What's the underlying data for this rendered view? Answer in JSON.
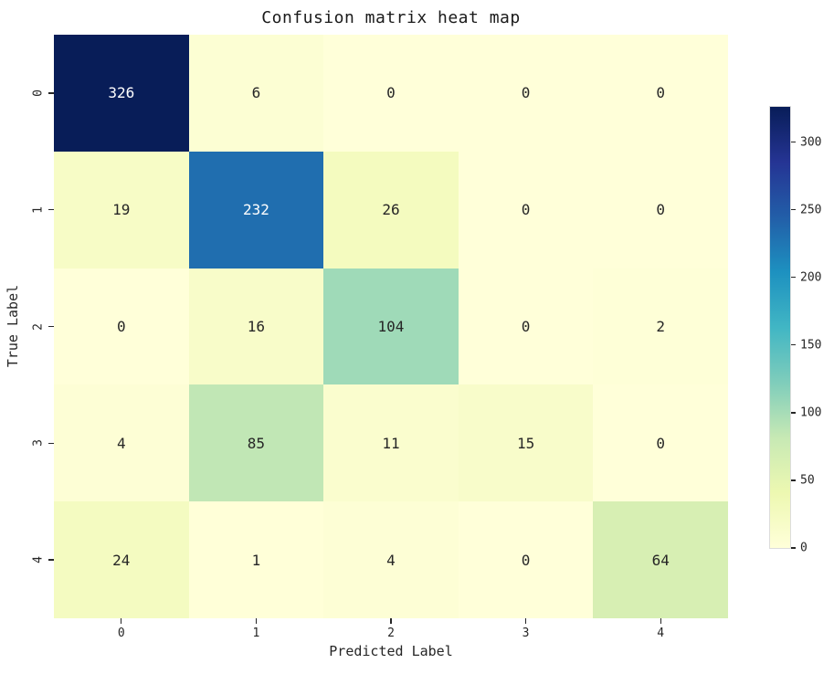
{
  "chart_data": {
    "type": "heatmap",
    "title": "Confusion matrix heat map",
    "xlabel": "Predicted Label",
    "ylabel": "True Label",
    "x_ticklabels": [
      "0",
      "1",
      "2",
      "3",
      "4"
    ],
    "y_ticklabels": [
      "0",
      "1",
      "2",
      "3",
      "4"
    ],
    "matrix": [
      [
        326,
        6,
        0,
        0,
        0
      ],
      [
        19,
        232,
        26,
        0,
        0
      ],
      [
        0,
        16,
        104,
        0,
        2
      ],
      [
        4,
        85,
        11,
        15,
        0
      ],
      [
        24,
        1,
        4,
        0,
        64
      ]
    ],
    "vmin": 0,
    "vmax": 326,
    "colormap_name": "YlGnBu",
    "colormap_stops": [
      "#ffffd9",
      "#edf8b1",
      "#c7e9b4",
      "#7fcdbb",
      "#41b6c4",
      "#1d91c0",
      "#225ea8",
      "#253494",
      "#081d58"
    ],
    "colorbar_ticks": [
      0,
      50,
      100,
      150,
      200,
      250,
      300
    ],
    "colorbar_position": "right",
    "grid": false,
    "annot_color_dark": "#262626",
    "annot_color_light": "#ffffff",
    "background_color": "#ffffff"
  }
}
